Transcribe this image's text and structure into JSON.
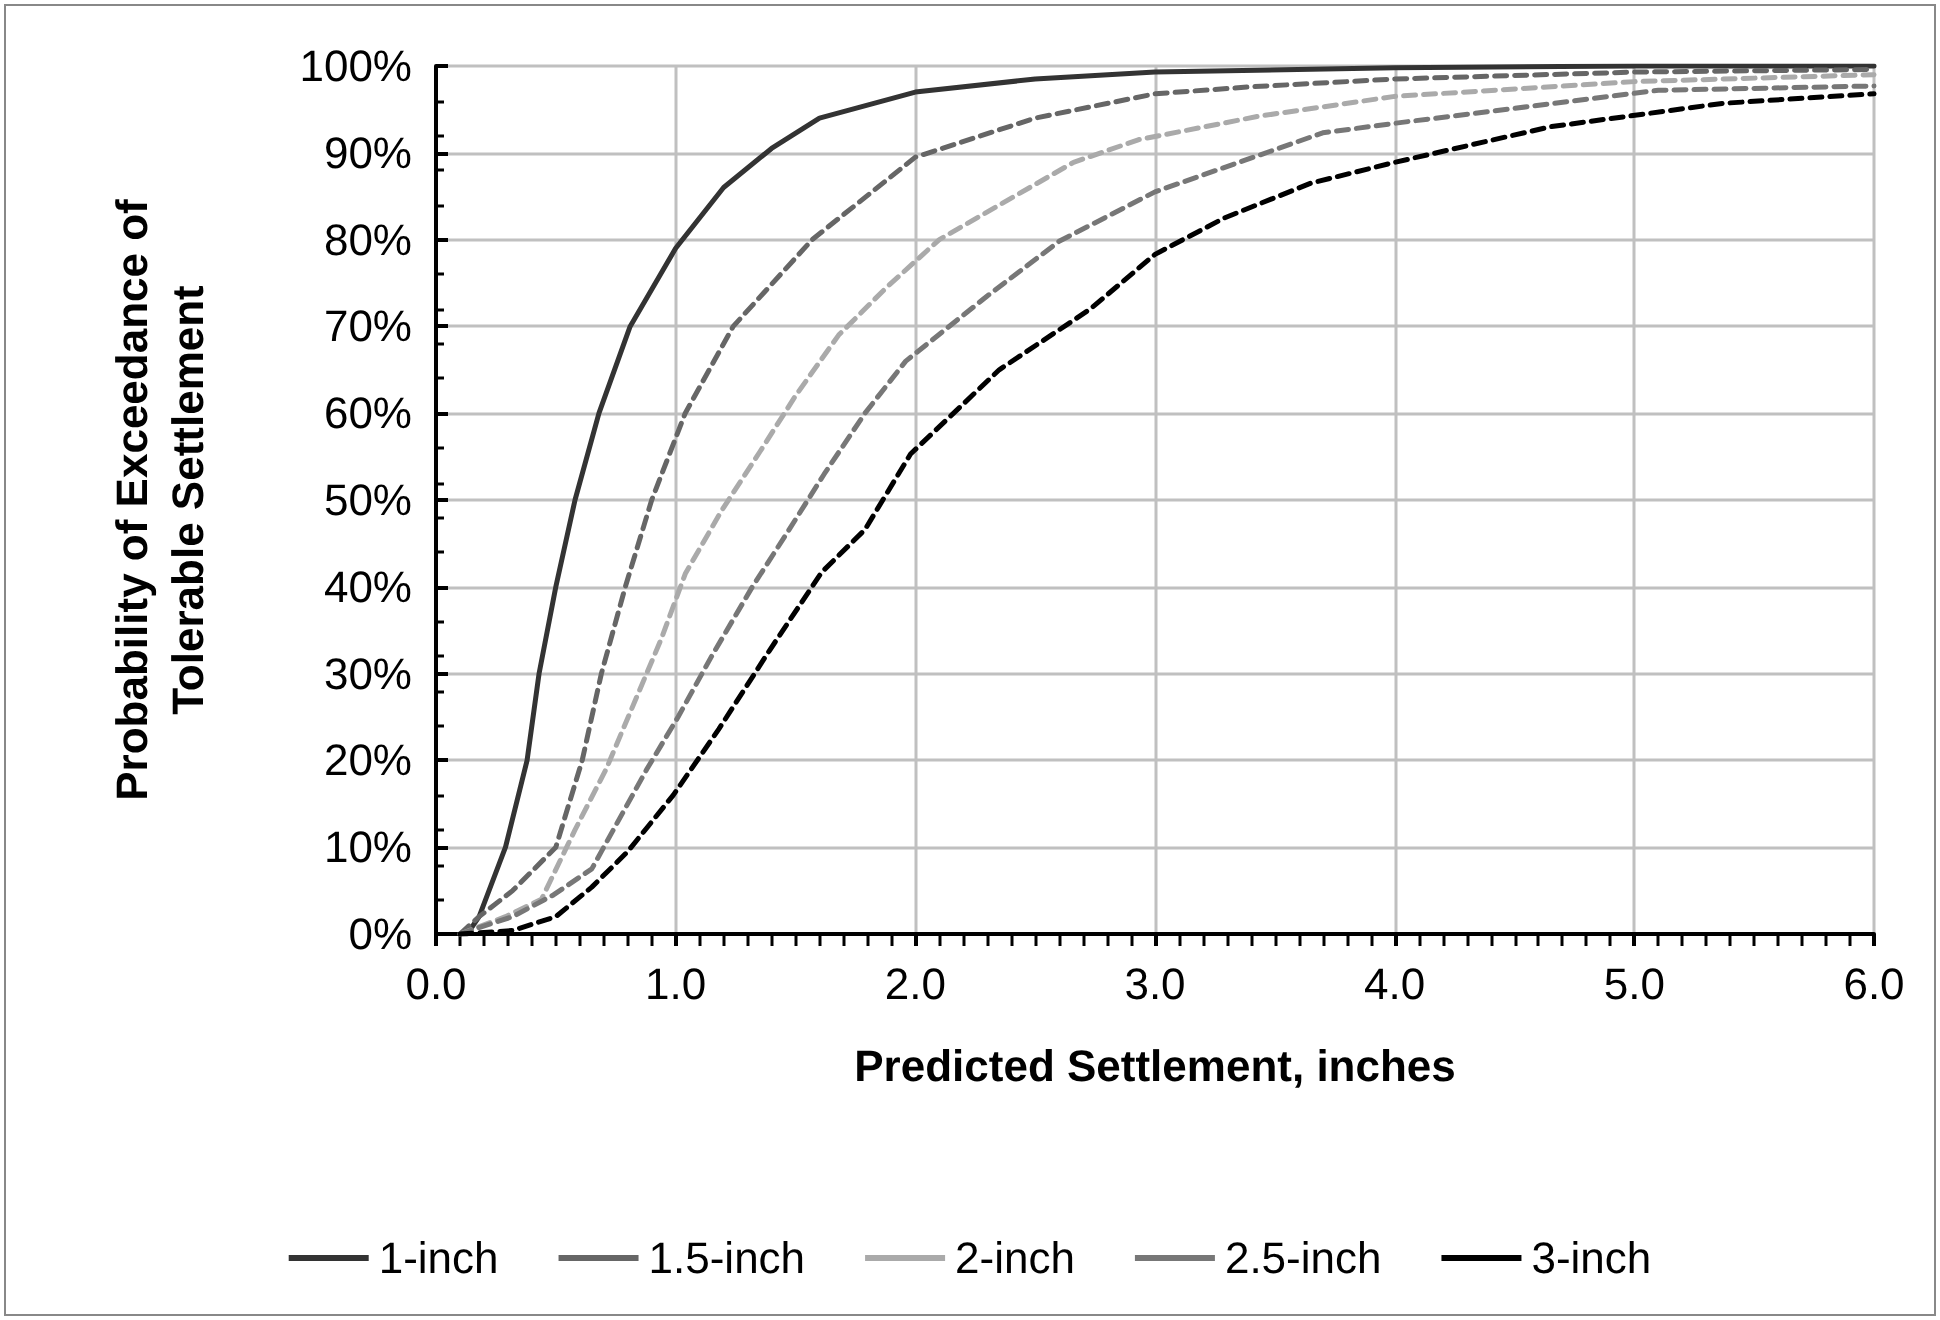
{
  "chart_data": {
    "type": "line",
    "xlabel": "Predicted Settlement, inches",
    "ylabel": "Probability of Exceedance of\nTolerable Settlement",
    "xlim": [
      0,
      6
    ],
    "xticks": [
      {
        "value": 0,
        "label": "0.0"
      },
      {
        "value": 1,
        "label": "1.0"
      },
      {
        "value": 2,
        "label": "2.0"
      },
      {
        "value": 3,
        "label": "3.0"
      },
      {
        "value": 4,
        "label": "4.0"
      },
      {
        "value": 5,
        "label": "5.0"
      },
      {
        "value": 6,
        "label": "6.0"
      }
    ],
    "ylim": [
      0,
      100
    ],
    "yticks": [
      {
        "value": 0,
        "label": "0%"
      },
      {
        "value": 10,
        "label": "10%"
      },
      {
        "value": 20,
        "label": "20%"
      },
      {
        "value": 30,
        "label": "30%"
      },
      {
        "value": 40,
        "label": "40%"
      },
      {
        "value": 50,
        "label": "50%"
      },
      {
        "value": 60,
        "label": "60%"
      },
      {
        "value": 70,
        "label": "70%"
      },
      {
        "value": 80,
        "label": "80%"
      },
      {
        "value": 90,
        "label": "90%"
      },
      {
        "value": 100,
        "label": "100%"
      }
    ],
    "grid": true,
    "legend": "bottom",
    "marker": "none",
    "series": [
      {
        "name": "1-inch",
        "color": "#333333",
        "line_style": "solid",
        "x": [
          0.1,
          0.13,
          0.18,
          0.29,
          0.38,
          0.43,
          0.5,
          0.58,
          0.68,
          0.81,
          1.0,
          1.2,
          1.4,
          1.6,
          2.0,
          2.5,
          3.0,
          4.0,
          5.0,
          6.0
        ],
        "values": [
          0,
          0,
          2,
          10,
          20,
          30,
          40,
          50,
          60,
          70,
          79,
          86,
          90.5,
          94,
          97,
          98.5,
          99.3,
          99.8,
          100,
          100
        ]
      },
      {
        "name": "1.5-inch",
        "color": "#666666",
        "line_style": "dashed",
        "x": [
          0.1,
          0.18,
          0.32,
          0.5,
          0.61,
          0.69,
          0.79,
          0.9,
          1.04,
          1.24,
          1.57,
          2.0,
          2.5,
          3.0,
          3.4,
          4.0,
          5.0,
          6.0
        ],
        "values": [
          0,
          2,
          5,
          10,
          20,
          30,
          40,
          50,
          60,
          70,
          80,
          89.5,
          94,
          96.8,
          97.6,
          98.5,
          99.3,
          99.6
        ]
      },
      {
        "name": "2-inch",
        "color": "#aaaaaa",
        "line_style": "dashed",
        "x": [
          0.1,
          0.29,
          0.44,
          0.58,
          0.71,
          0.94,
          1.04,
          1.19,
          1.35,
          1.5,
          1.68,
          1.88,
          2.1,
          2.66,
          2.93,
          3.43,
          4.0,
          5.0,
          6.0
        ],
        "values": [
          0,
          2,
          4,
          12,
          19,
          34,
          41.5,
          48.7,
          55.5,
          62,
          69,
          74.5,
          80,
          88.9,
          91.5,
          94.2,
          96.5,
          98.2,
          99
        ]
      },
      {
        "name": "2.5-inch",
        "color": "#777777",
        "line_style": "dashed",
        "x": [
          0.1,
          0.32,
          0.49,
          0.65,
          0.88,
          1.01,
          1.15,
          1.32,
          1.46,
          1.62,
          1.79,
          1.96,
          2.3,
          2.6,
          3.0,
          3.7,
          4.0,
          5.1,
          6.0
        ],
        "values": [
          0,
          2,
          4.5,
          7.5,
          19,
          25,
          32,
          40,
          46,
          53,
          60,
          66,
          73.5,
          79.8,
          85.5,
          92.3,
          93.4,
          97.2,
          97.7
        ]
      },
      {
        "name": "3-inch",
        "color": "#000000",
        "line_style": "dashed",
        "x": [
          0.1,
          0.32,
          0.5,
          0.65,
          0.8,
          0.99,
          1.18,
          1.39,
          1.61,
          1.79,
          1.98,
          2.35,
          2.73,
          3.0,
          3.29,
          3.65,
          4.0,
          4.65,
          5.37,
          6.0
        ],
        "values": [
          0,
          0.4,
          2,
          5.4,
          9.5,
          16,
          23.6,
          32.6,
          41.7,
          46.6,
          55.3,
          65,
          72,
          78.3,
          82.5,
          86.5,
          88.9,
          93,
          95.7,
          96.8
        ]
      }
    ]
  }
}
